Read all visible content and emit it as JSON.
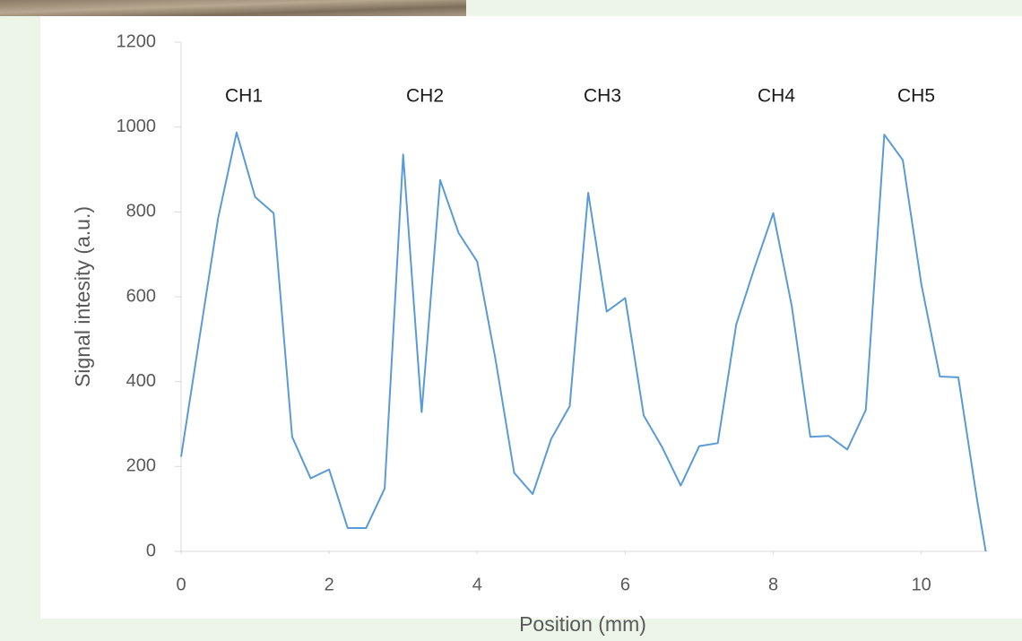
{
  "chart_data": {
    "type": "line",
    "x_label": "Position (mm)",
    "y_label": "Signal intesity (a.u.)",
    "annotations": [
      "CH1",
      "CH2",
      "CH3",
      "CH4",
      "CH5"
    ],
    "x": [
      0,
      0.25,
      0.5,
      0.75,
      1,
      1.25,
      1.5,
      1.75,
      2,
      2.25,
      2.5,
      2.75,
      3,
      3.25,
      3.5,
      3.75,
      4,
      4.25,
      4.5,
      4.75,
      5,
      5.25,
      5.5,
      5.75,
      6,
      6.25,
      6.5,
      6.75,
      7,
      7.25,
      7.5,
      7.75,
      8,
      8.25,
      8.5,
      8.75,
      9,
      9.25,
      9.5,
      9.75,
      10,
      10.25,
      10.5,
      10.75,
      10.87
    ],
    "series": [
      {
        "color": "#5b9bd5",
        "values": [
          223,
          505,
          785,
          987,
          835,
          797,
          270,
          172,
          193,
          55,
          55,
          148,
          935,
          328,
          875,
          750,
          683,
          450,
          185,
          135,
          265,
          342,
          845,
          565,
          597,
          320,
          245,
          155,
          248,
          255,
          535,
          670,
          797,
          578,
          270,
          272,
          240,
          333,
          982,
          922,
          630,
          412,
          410,
          125,
          0
        ]
      }
    ],
    "xlim": [
      0,
      10.9
    ],
    "xticks": [
      0,
      2,
      4,
      6,
      8,
      10
    ],
    "ylim": [
      0,
      1200
    ],
    "yticks": [
      0,
      200,
      400,
      600,
      800,
      1000,
      1200
    ],
    "grid": false
  }
}
